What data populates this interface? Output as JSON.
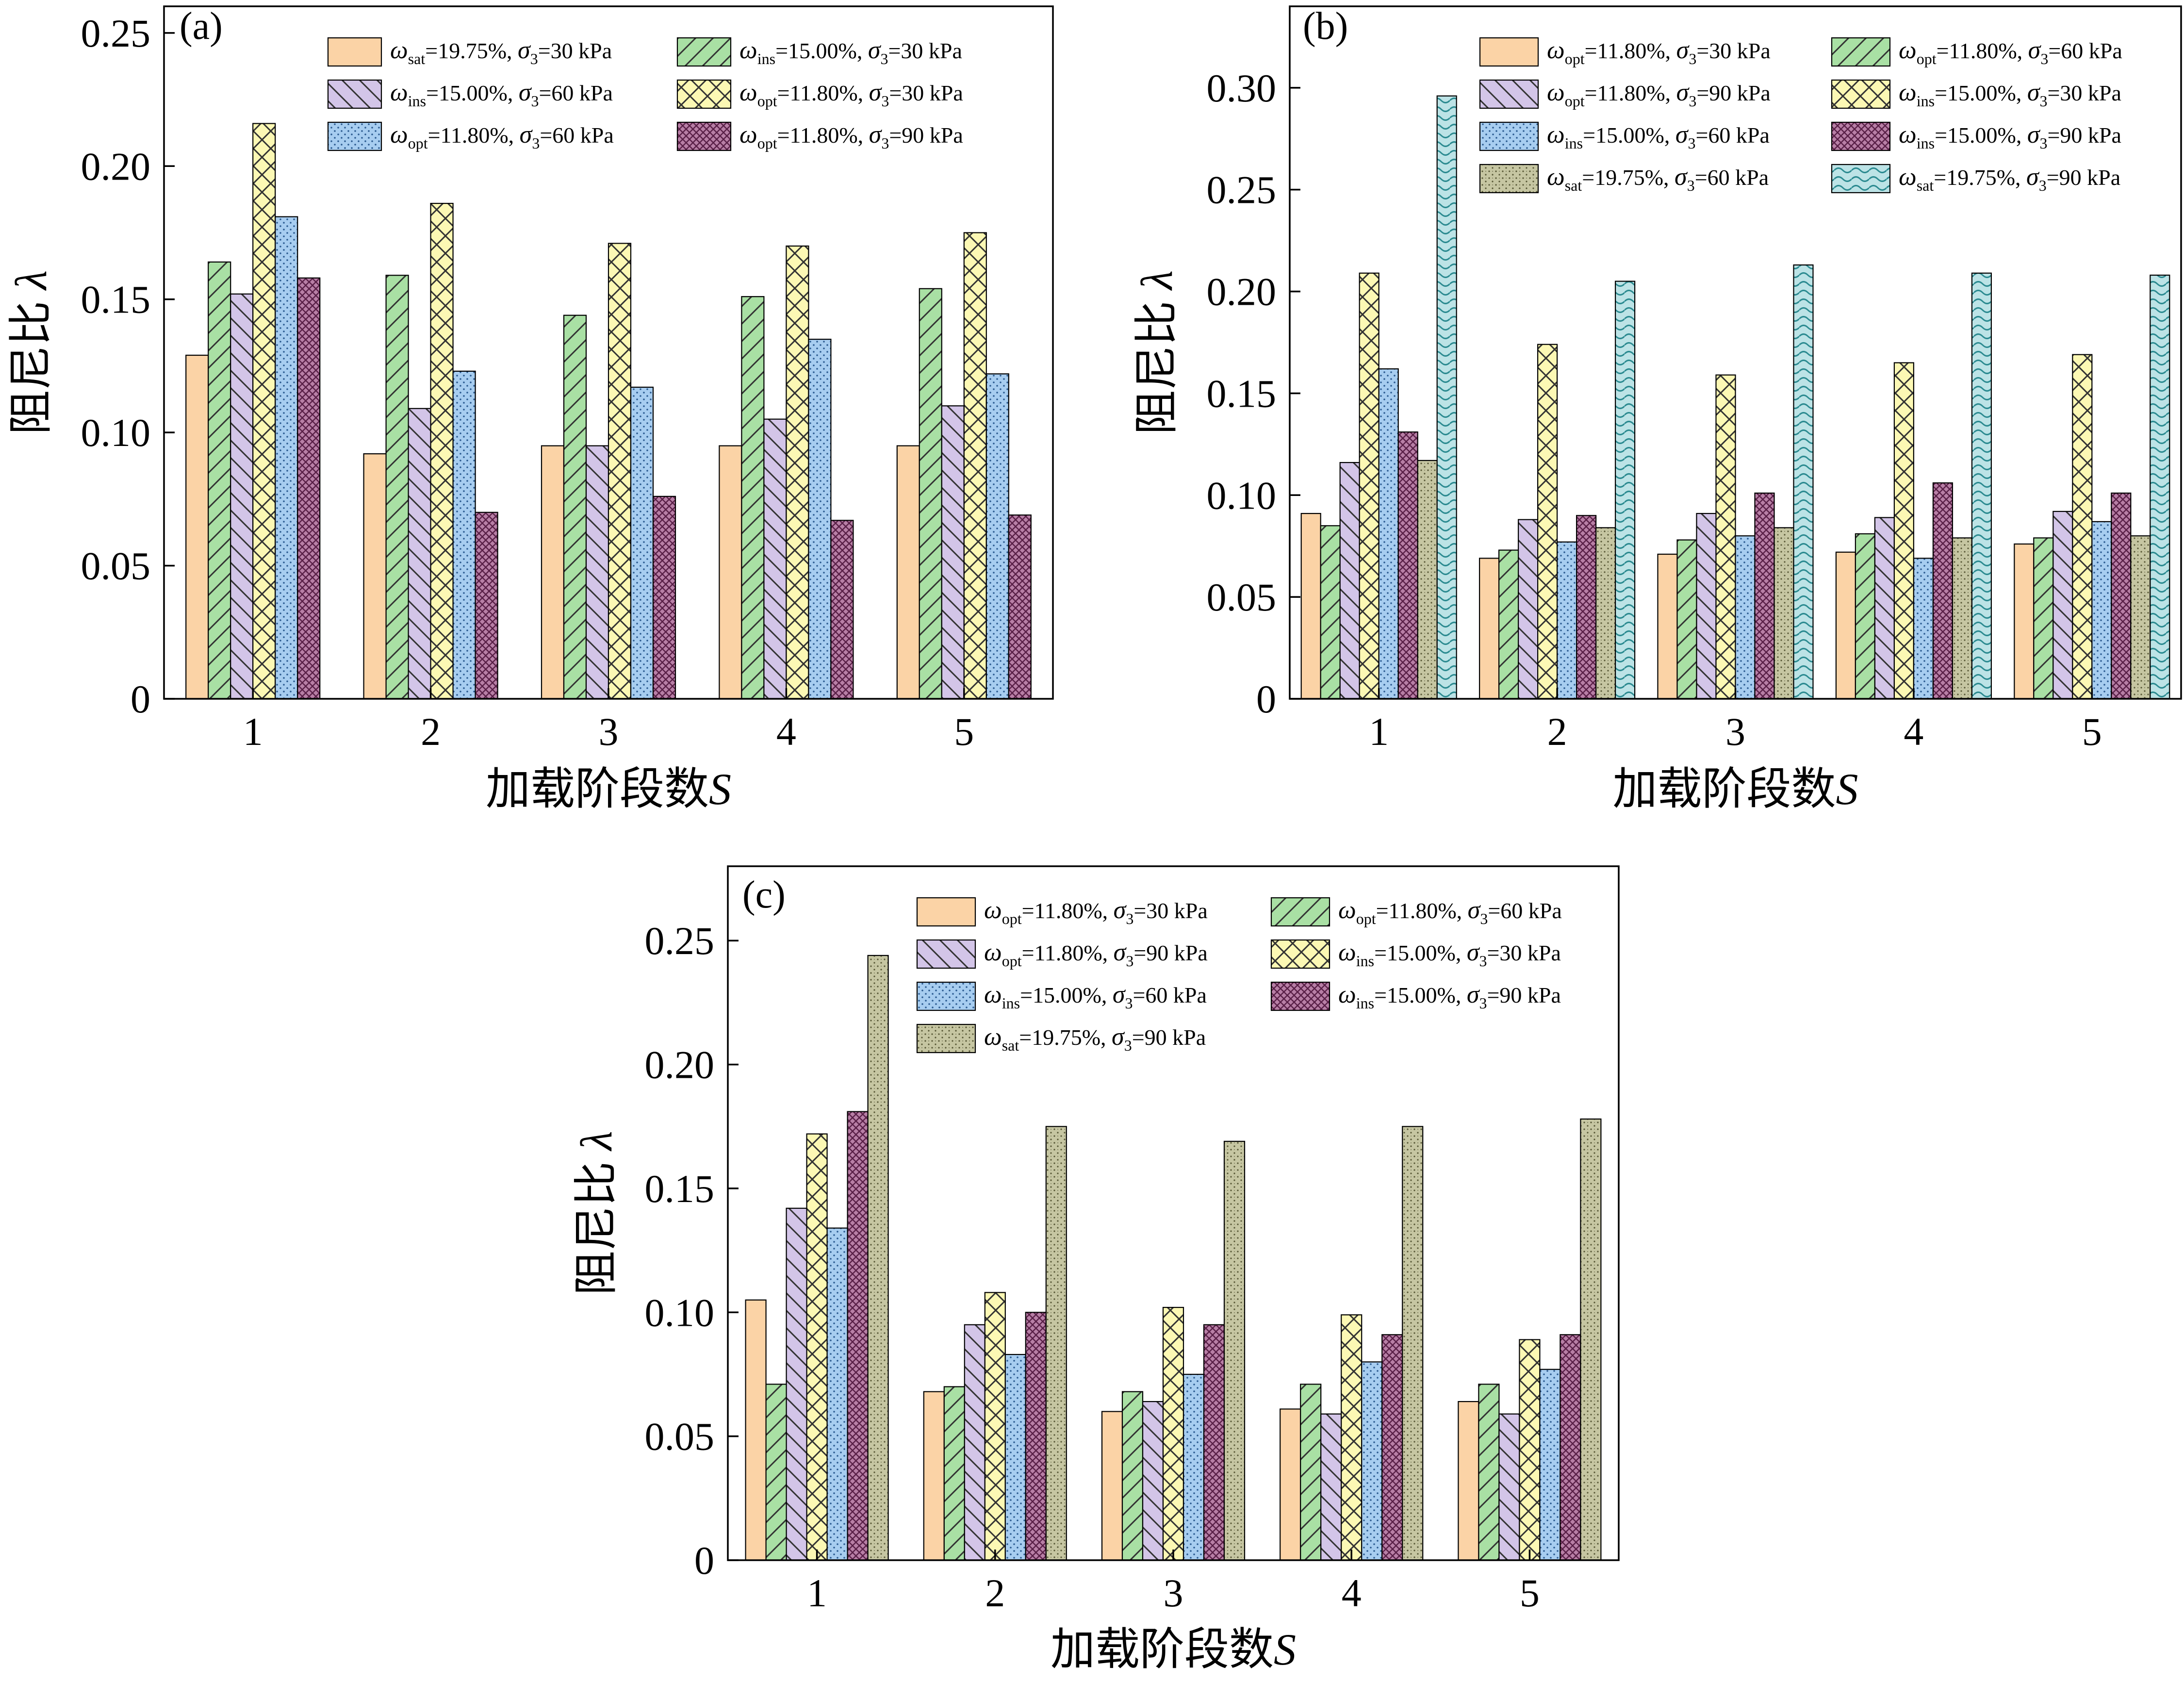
{
  "palette": {
    "orange": "#FBD3A6",
    "green": "#A9E0A4",
    "purple": "#D3C5E8",
    "yellow": "#FCF8B4",
    "blue": "#A7CDF0",
    "maroon": "#B87FA6",
    "olive": "#C6C6A2",
    "cyan": "#BCE3E6"
  },
  "patterns": {
    "orange": "solid",
    "green": "diag-fwd",
    "purple": "diag-back",
    "yellow": "crosshatch",
    "blue": "dots",
    "maroon": "grid",
    "olive": "stipple",
    "cyan": "waves"
  },
  "chart_data": [
    {
      "type": "bar",
      "panel_label": "(a)",
      "xlabel": "加载阶段数S",
      "ylabel": "阻尼比λ",
      "categories": [
        "1",
        "2",
        "3",
        "4",
        "5"
      ],
      "ylim": [
        0,
        0.26
      ],
      "yticks": [
        0,
        0.05,
        0.1,
        0.15,
        0.2,
        0.25
      ],
      "ytick_labels": [
        "0",
        "0.05",
        "0.10",
        "0.15",
        "0.20",
        "0.25"
      ],
      "legend_columns": 2,
      "series": [
        {
          "name": "ωsat=19.75%, σ3=30 kPa",
          "omega_sub": "sat",
          "omega_val": "=19.75%,",
          "sigma_val": "=30 kPa",
          "style": "orange",
          "values": [
            0.129,
            0.092,
            0.095,
            0.095,
            0.095
          ]
        },
        {
          "name": "ωins=15.00%, σ3=30 kPa",
          "omega_sub": "ins",
          "omega_val": "=15.00%,",
          "sigma_val": "=30 kPa",
          "style": "green",
          "values": [
            0.164,
            0.159,
            0.144,
            0.151,
            0.154
          ]
        },
        {
          "name": "ωins=15.00%, σ3=60 kPa",
          "omega_sub": "ins",
          "omega_val": "=15.00%,",
          "sigma_val": "=60 kPa",
          "style": "purple",
          "values": [
            0.152,
            0.109,
            0.095,
            0.105,
            0.11
          ]
        },
        {
          "name": "ωopt=11.80%, σ3=30 kPa",
          "omega_sub": "opt",
          "omega_val": "=11.80%,",
          "sigma_val": "=30 kPa",
          "style": "yellow",
          "values": [
            0.216,
            0.186,
            0.171,
            0.17,
            0.175
          ]
        },
        {
          "name": "ωopt=11.80%, σ3=60 kPa",
          "omega_sub": "opt",
          "omega_val": "=11.80%,",
          "sigma_val": "=60 kPa",
          "style": "blue",
          "values": [
            0.181,
            0.123,
            0.117,
            0.135,
            0.122
          ]
        },
        {
          "name": "ωopt=11.80%, σ3=90 kPa",
          "omega_sub": "opt",
          "omega_val": "=11.80%,",
          "sigma_val": "=90 kPa",
          "style": "maroon",
          "values": [
            0.158,
            0.07,
            0.076,
            0.067,
            0.069
          ]
        }
      ]
    },
    {
      "type": "bar",
      "panel_label": "(b)",
      "xlabel": "加载阶段数S",
      "ylabel": "阻尼比λ",
      "categories": [
        "1",
        "2",
        "3",
        "4",
        "5"
      ],
      "ylim": [
        0,
        0.34
      ],
      "yticks": [
        0,
        0.05,
        0.1,
        0.15,
        0.2,
        0.25,
        0.3
      ],
      "ytick_labels": [
        "0",
        "0.05",
        "0.10",
        "0.15",
        "0.20",
        "0.25",
        "0.30"
      ],
      "legend_columns": 2,
      "series": [
        {
          "name": "ωopt=11.80%, σ3=30 kPa",
          "omega_sub": "opt",
          "omega_val": "=11.80%,",
          "sigma_val": "=30 kPa",
          "style": "orange",
          "values": [
            0.091,
            0.069,
            0.071,
            0.072,
            0.076
          ]
        },
        {
          "name": "ωopt=11.80%, σ3=60 kPa",
          "omega_sub": "opt",
          "omega_val": "=11.80%,",
          "sigma_val": "=60 kPa",
          "style": "green",
          "values": [
            0.085,
            0.073,
            0.078,
            0.081,
            0.079
          ]
        },
        {
          "name": "ωopt=11.80%, σ3=90 kPa",
          "omega_sub": "opt",
          "omega_val": "=11.80%,",
          "sigma_val": "=90 kPa",
          "style": "purple",
          "values": [
            0.116,
            0.088,
            0.091,
            0.089,
            0.092
          ]
        },
        {
          "name": "ωins=15.00%, σ3=30 kPa",
          "omega_sub": "ins",
          "omega_val": "=15.00%,",
          "sigma_val": "=30 kPa",
          "style": "yellow",
          "values": [
            0.209,
            0.174,
            0.159,
            0.165,
            0.169
          ]
        },
        {
          "name": "ωins=15.00%, σ3=60 kPa",
          "omega_sub": "ins",
          "omega_val": "=15.00%,",
          "sigma_val": "=60 kPa",
          "style": "blue",
          "values": [
            0.162,
            0.077,
            0.08,
            0.069,
            0.087
          ]
        },
        {
          "name": "ωins=15.00%, σ3=90 kPa",
          "omega_sub": "ins",
          "omega_val": "=15.00%,",
          "sigma_val": "=90 kPa",
          "style": "maroon",
          "values": [
            0.131,
            0.09,
            0.101,
            0.106,
            0.101
          ]
        },
        {
          "name": "ωsat=19.75%, σ3=60 kPa",
          "omega_sub": "sat",
          "omega_val": "=19.75%,",
          "sigma_val": "=60 kPa",
          "style": "olive",
          "values": [
            0.117,
            0.084,
            0.084,
            0.079,
            0.08
          ]
        },
        {
          "name": "ωsat=19.75%, σ3=90 kPa",
          "omega_sub": "sat",
          "omega_val": "=19.75%,",
          "sigma_val": "=90 kPa",
          "style": "cyan",
          "values": [
            0.296,
            0.205,
            0.213,
            0.209,
            0.208
          ]
        }
      ]
    },
    {
      "type": "bar",
      "panel_label": "(c)",
      "xlabel": "加载阶段数S",
      "ylabel": "阻尼比λ",
      "categories": [
        "1",
        "2",
        "3",
        "4",
        "5"
      ],
      "ylim": [
        0,
        0.28
      ],
      "yticks": [
        0,
        0.05,
        0.1,
        0.15,
        0.2,
        0.25
      ],
      "ytick_labels": [
        "0",
        "0.05",
        "0.10",
        "0.15",
        "0.20",
        "0.25"
      ],
      "legend_columns": 2,
      "series": [
        {
          "name": "ωopt=11.80%, σ3=30 kPa",
          "omega_sub": "opt",
          "omega_val": "=11.80%,",
          "sigma_val": "=30 kPa",
          "style": "orange",
          "values": [
            0.105,
            0.068,
            0.06,
            0.061,
            0.064
          ]
        },
        {
          "name": "ωopt=11.80%, σ3=60 kPa",
          "omega_sub": "opt",
          "omega_val": "=11.80%,",
          "sigma_val": "=60 kPa",
          "style": "green",
          "values": [
            0.071,
            0.07,
            0.068,
            0.071,
            0.071
          ]
        },
        {
          "name": "ωopt=11.80%, σ3=90 kPa",
          "omega_sub": "opt",
          "omega_val": "=11.80%,",
          "sigma_val": "=90 kPa",
          "style": "purple",
          "values": [
            0.142,
            0.095,
            0.064,
            0.059,
            0.059
          ]
        },
        {
          "name": "ωins=15.00%, σ3=30 kPa",
          "omega_sub": "ins",
          "omega_val": "=15.00%,",
          "sigma_val": "=30 kPa",
          "style": "yellow",
          "values": [
            0.172,
            0.108,
            0.102,
            0.099,
            0.089
          ]
        },
        {
          "name": "ωins=15.00%, σ3=60 kPa",
          "omega_sub": "ins",
          "omega_val": "=15.00%,",
          "sigma_val": "=60 kPa",
          "style": "blue",
          "values": [
            0.134,
            0.083,
            0.075,
            0.08,
            0.077
          ]
        },
        {
          "name": "ωins=15.00%, σ3=90 kPa",
          "omega_sub": "ins",
          "omega_val": "=15.00%,",
          "sigma_val": "=90 kPa",
          "style": "maroon",
          "values": [
            0.181,
            0.1,
            0.095,
            0.091,
            0.091
          ]
        },
        {
          "name": "ωsat=19.75%, σ3=90 kPa",
          "omega_sub": "sat",
          "omega_val": "=19.75%,",
          "sigma_val": "=90 kPa",
          "style": "olive",
          "values": [
            0.244,
            0.175,
            0.169,
            0.175,
            0.178
          ]
        }
      ]
    }
  ]
}
